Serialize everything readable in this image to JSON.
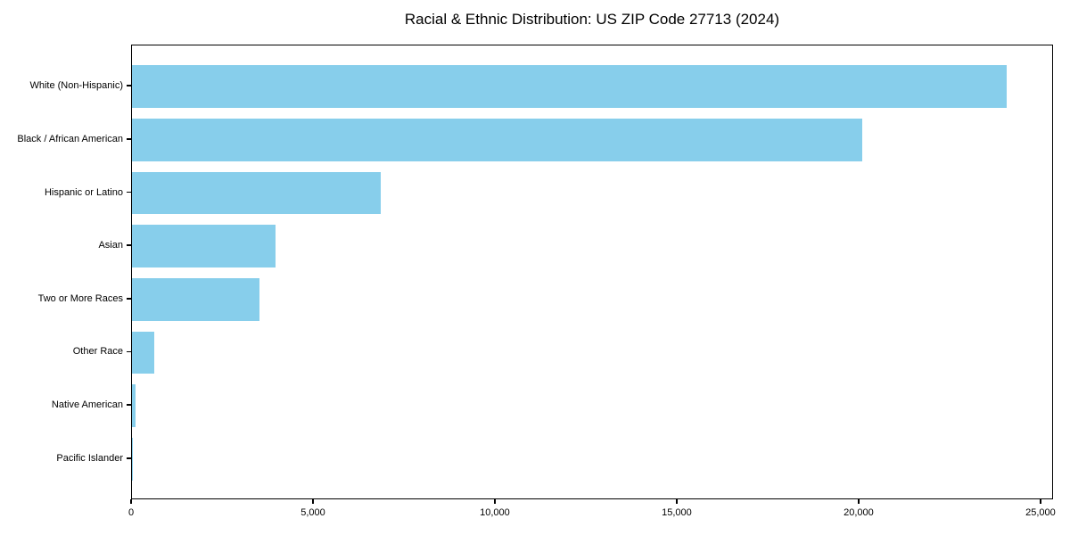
{
  "chart_data": {
    "type": "bar",
    "orientation": "horizontal",
    "title": "Racial & Ethnic Distribution: US ZIP Code 27713 (2024)",
    "categories": [
      "White (Non-Hispanic)",
      "Black / African American",
      "Hispanic or Latino",
      "Asian",
      "Two or More Races",
      "Other Race",
      "Native American",
      "Pacific Islander"
    ],
    "values": [
      24100,
      20120,
      6840,
      3960,
      3510,
      620,
      95,
      20
    ],
    "xlabel": "",
    "ylabel": "",
    "xlim": [
      0,
      25345
    ],
    "x_ticks": [
      0,
      5000,
      10000,
      15000,
      20000,
      25000
    ],
    "x_tick_labels": [
      "0",
      "5,000",
      "10,000",
      "15,000",
      "20,000",
      "25,000"
    ],
    "bar_color": "#87CEEB",
    "text_color": "#000000",
    "spine_color": "#000000",
    "background_color": "#FFFFFF",
    "grid": false,
    "legend": null
  }
}
